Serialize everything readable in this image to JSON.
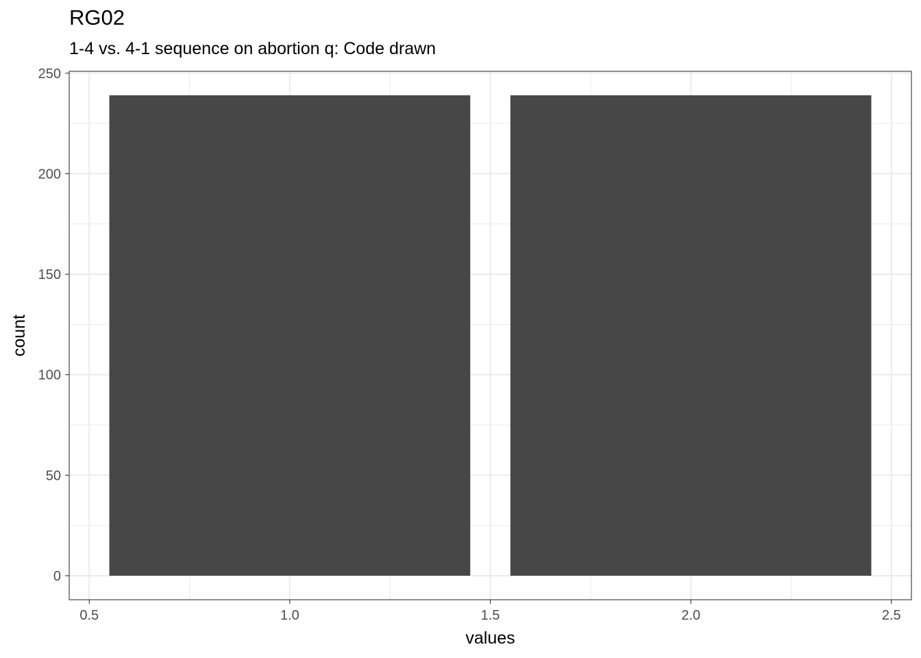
{
  "chart_data": {
    "type": "bar",
    "title": "RG02",
    "subtitle": "1-4 vs. 4-1 sequence on abortion q: Code drawn",
    "xlabel": "values",
    "ylabel": "count",
    "bars": [
      {
        "x": 1,
        "value": 239
      },
      {
        "x": 2,
        "value": 239
      }
    ],
    "bar_width": 0.9,
    "xlim": [
      0.45,
      2.55
    ],
    "ylim": [
      -11.95,
      250.95
    ],
    "x_ticks": [
      0.5,
      1.0,
      1.5,
      2.0,
      2.5
    ],
    "x_tick_labels": [
      "0.5",
      "1.0",
      "1.5",
      "2.0",
      "2.5"
    ],
    "y_ticks": [
      0,
      50,
      100,
      150,
      200,
      250
    ],
    "y_tick_labels": [
      "0",
      "50",
      "100",
      "150",
      "200",
      "250"
    ],
    "grid": true,
    "bar_color": "#474747",
    "grid_color": "#ebebeb"
  }
}
